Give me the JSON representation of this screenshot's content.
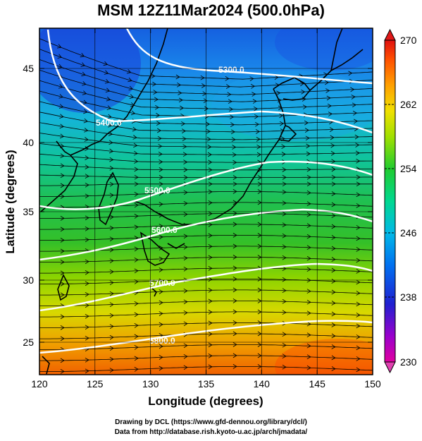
{
  "title": "MSM 12Z11Mar2024 (500.0hPa)",
  "x_axis": {
    "label": "Longitude (degrees)",
    "ticks": [
      "120",
      "125",
      "130",
      "135",
      "140",
      "145",
      "150"
    ],
    "range": [
      120,
      150
    ]
  },
  "y_axis": {
    "label": "Latitude  (degrees)",
    "ticks": [
      "25",
      "30",
      "35",
      "40",
      "45"
    ],
    "range": [
      22.4,
      47.6
    ]
  },
  "colorbar": {
    "ticks": [
      "270",
      "262",
      "254",
      "246",
      "238",
      "230"
    ],
    "range": [
      230,
      270
    ],
    "colors": [
      "#e0008f",
      "#8a00c8",
      "#2020d8",
      "#0066ee",
      "#00b6e8",
      "#00d9a0",
      "#20cc40",
      "#88dd00",
      "#e6e000",
      "#ffa000",
      "#ff5a00",
      "#e01010"
    ]
  },
  "contours": [
    {
      "label": "5300.0"
    },
    {
      "label": "5400.0"
    },
    {
      "label": "5500.0"
    },
    {
      "label": "5600.0"
    },
    {
      "label": "5700.0"
    },
    {
      "label": "5800.0"
    }
  ],
  "credits": {
    "line1": "Drawing by DCL (https://www.gfd-dennou.org/library/dcl/)",
    "line2": "Data from http://database.rish.kyoto-u.ac.jp/arch/jmadata/"
  }
}
